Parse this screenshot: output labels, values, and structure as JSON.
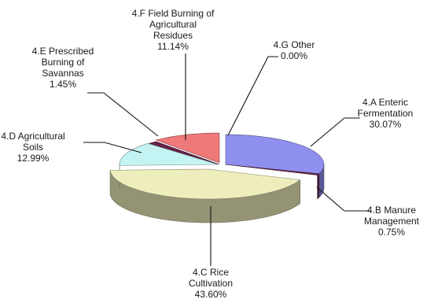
{
  "chart_data": {
    "type": "pie",
    "style": "3d-exploded-tilt",
    "slices": [
      {
        "id": "4a",
        "label": [
          "4.A Enteric",
          "Fermentation"
        ],
        "pct_text": "30.07%",
        "value": 30.07,
        "color": "#8f8fef"
      },
      {
        "id": "4b",
        "label": [
          "4.B Manure",
          "Management"
        ],
        "pct_text": "0.75%",
        "value": 0.75,
        "color": "#732a4f"
      },
      {
        "id": "4c",
        "label": [
          "4.C Rice",
          "Cultivation"
        ],
        "pct_text": "43.60%",
        "value": 43.6,
        "color": "#eeeebd"
      },
      {
        "id": "4d",
        "label": [
          "4.D Agricultural",
          "Soils"
        ],
        "pct_text": "12.99%",
        "value": 12.99,
        "color": "#c4f3f3"
      },
      {
        "id": "4e",
        "label": [
          "4.E Prescribed",
          "Burning of",
          "Savannas"
        ],
        "pct_text": "1.45%",
        "value": 1.45,
        "color": "#6a1f48"
      },
      {
        "id": "4f",
        "label": [
          "4.F Field Burning of",
          "Agricultural",
          "Residues"
        ],
        "pct_text": "11.14%",
        "value": 11.14,
        "color": "#ef7878"
      },
      {
        "id": "4g",
        "label": [
          "4.G Other"
        ],
        "pct_text": "0.00%",
        "value": 0.0,
        "color": "#3a6ac8"
      }
    ]
  }
}
